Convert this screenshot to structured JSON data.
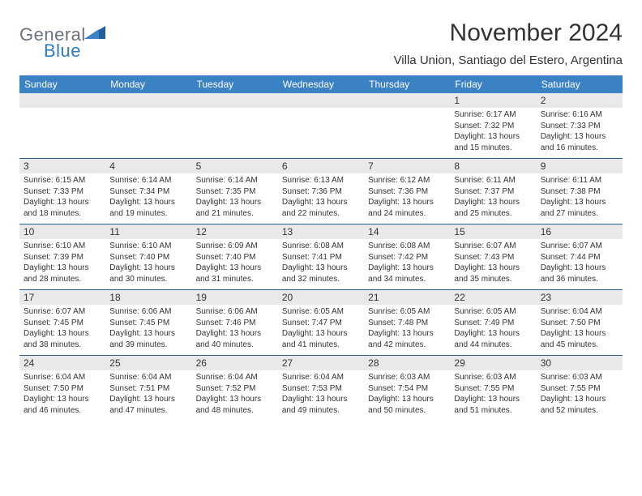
{
  "logo": {
    "part1": "General",
    "part2": "Blue"
  },
  "title": "November 2024",
  "location": "Villa Union, Santiago del Estero, Argentina",
  "colors": {
    "header_bg": "#3b82c4",
    "header_text": "#ffffff",
    "stripe_bg": "#e9e9e9",
    "border": "#2b5f8e",
    "text": "#333333",
    "logo_gray": "#6b7280",
    "logo_blue": "#2f7bbf"
  },
  "day_names": [
    "Sunday",
    "Monday",
    "Tuesday",
    "Wednesday",
    "Thursday",
    "Friday",
    "Saturday"
  ],
  "weeks": [
    [
      null,
      null,
      null,
      null,
      null,
      {
        "d": "1",
        "sr": "Sunrise: 6:17 AM",
        "ss": "Sunset: 7:32 PM",
        "dl1": "Daylight: 13 hours",
        "dl2": "and 15 minutes."
      },
      {
        "d": "2",
        "sr": "Sunrise: 6:16 AM",
        "ss": "Sunset: 7:33 PM",
        "dl1": "Daylight: 13 hours",
        "dl2": "and 16 minutes."
      }
    ],
    [
      {
        "d": "3",
        "sr": "Sunrise: 6:15 AM",
        "ss": "Sunset: 7:33 PM",
        "dl1": "Daylight: 13 hours",
        "dl2": "and 18 minutes."
      },
      {
        "d": "4",
        "sr": "Sunrise: 6:14 AM",
        "ss": "Sunset: 7:34 PM",
        "dl1": "Daylight: 13 hours",
        "dl2": "and 19 minutes."
      },
      {
        "d": "5",
        "sr": "Sunrise: 6:14 AM",
        "ss": "Sunset: 7:35 PM",
        "dl1": "Daylight: 13 hours",
        "dl2": "and 21 minutes."
      },
      {
        "d": "6",
        "sr": "Sunrise: 6:13 AM",
        "ss": "Sunset: 7:36 PM",
        "dl1": "Daylight: 13 hours",
        "dl2": "and 22 minutes."
      },
      {
        "d": "7",
        "sr": "Sunrise: 6:12 AM",
        "ss": "Sunset: 7:36 PM",
        "dl1": "Daylight: 13 hours",
        "dl2": "and 24 minutes."
      },
      {
        "d": "8",
        "sr": "Sunrise: 6:11 AM",
        "ss": "Sunset: 7:37 PM",
        "dl1": "Daylight: 13 hours",
        "dl2": "and 25 minutes."
      },
      {
        "d": "9",
        "sr": "Sunrise: 6:11 AM",
        "ss": "Sunset: 7:38 PM",
        "dl1": "Daylight: 13 hours",
        "dl2": "and 27 minutes."
      }
    ],
    [
      {
        "d": "10",
        "sr": "Sunrise: 6:10 AM",
        "ss": "Sunset: 7:39 PM",
        "dl1": "Daylight: 13 hours",
        "dl2": "and 28 minutes."
      },
      {
        "d": "11",
        "sr": "Sunrise: 6:10 AM",
        "ss": "Sunset: 7:40 PM",
        "dl1": "Daylight: 13 hours",
        "dl2": "and 30 minutes."
      },
      {
        "d": "12",
        "sr": "Sunrise: 6:09 AM",
        "ss": "Sunset: 7:40 PM",
        "dl1": "Daylight: 13 hours",
        "dl2": "and 31 minutes."
      },
      {
        "d": "13",
        "sr": "Sunrise: 6:08 AM",
        "ss": "Sunset: 7:41 PM",
        "dl1": "Daylight: 13 hours",
        "dl2": "and 32 minutes."
      },
      {
        "d": "14",
        "sr": "Sunrise: 6:08 AM",
        "ss": "Sunset: 7:42 PM",
        "dl1": "Daylight: 13 hours",
        "dl2": "and 34 minutes."
      },
      {
        "d": "15",
        "sr": "Sunrise: 6:07 AM",
        "ss": "Sunset: 7:43 PM",
        "dl1": "Daylight: 13 hours",
        "dl2": "and 35 minutes."
      },
      {
        "d": "16",
        "sr": "Sunrise: 6:07 AM",
        "ss": "Sunset: 7:44 PM",
        "dl1": "Daylight: 13 hours",
        "dl2": "and 36 minutes."
      }
    ],
    [
      {
        "d": "17",
        "sr": "Sunrise: 6:07 AM",
        "ss": "Sunset: 7:45 PM",
        "dl1": "Daylight: 13 hours",
        "dl2": "and 38 minutes."
      },
      {
        "d": "18",
        "sr": "Sunrise: 6:06 AM",
        "ss": "Sunset: 7:45 PM",
        "dl1": "Daylight: 13 hours",
        "dl2": "and 39 minutes."
      },
      {
        "d": "19",
        "sr": "Sunrise: 6:06 AM",
        "ss": "Sunset: 7:46 PM",
        "dl1": "Daylight: 13 hours",
        "dl2": "and 40 minutes."
      },
      {
        "d": "20",
        "sr": "Sunrise: 6:05 AM",
        "ss": "Sunset: 7:47 PM",
        "dl1": "Daylight: 13 hours",
        "dl2": "and 41 minutes."
      },
      {
        "d": "21",
        "sr": "Sunrise: 6:05 AM",
        "ss": "Sunset: 7:48 PM",
        "dl1": "Daylight: 13 hours",
        "dl2": "and 42 minutes."
      },
      {
        "d": "22",
        "sr": "Sunrise: 6:05 AM",
        "ss": "Sunset: 7:49 PM",
        "dl1": "Daylight: 13 hours",
        "dl2": "and 44 minutes."
      },
      {
        "d": "23",
        "sr": "Sunrise: 6:04 AM",
        "ss": "Sunset: 7:50 PM",
        "dl1": "Daylight: 13 hours",
        "dl2": "and 45 minutes."
      }
    ],
    [
      {
        "d": "24",
        "sr": "Sunrise: 6:04 AM",
        "ss": "Sunset: 7:50 PM",
        "dl1": "Daylight: 13 hours",
        "dl2": "and 46 minutes."
      },
      {
        "d": "25",
        "sr": "Sunrise: 6:04 AM",
        "ss": "Sunset: 7:51 PM",
        "dl1": "Daylight: 13 hours",
        "dl2": "and 47 minutes."
      },
      {
        "d": "26",
        "sr": "Sunrise: 6:04 AM",
        "ss": "Sunset: 7:52 PM",
        "dl1": "Daylight: 13 hours",
        "dl2": "and 48 minutes."
      },
      {
        "d": "27",
        "sr": "Sunrise: 6:04 AM",
        "ss": "Sunset: 7:53 PM",
        "dl1": "Daylight: 13 hours",
        "dl2": "and 49 minutes."
      },
      {
        "d": "28",
        "sr": "Sunrise: 6:03 AM",
        "ss": "Sunset: 7:54 PM",
        "dl1": "Daylight: 13 hours",
        "dl2": "and 50 minutes."
      },
      {
        "d": "29",
        "sr": "Sunrise: 6:03 AM",
        "ss": "Sunset: 7:55 PM",
        "dl1": "Daylight: 13 hours",
        "dl2": "and 51 minutes."
      },
      {
        "d": "30",
        "sr": "Sunrise: 6:03 AM",
        "ss": "Sunset: 7:55 PM",
        "dl1": "Daylight: 13 hours",
        "dl2": "and 52 minutes."
      }
    ]
  ]
}
